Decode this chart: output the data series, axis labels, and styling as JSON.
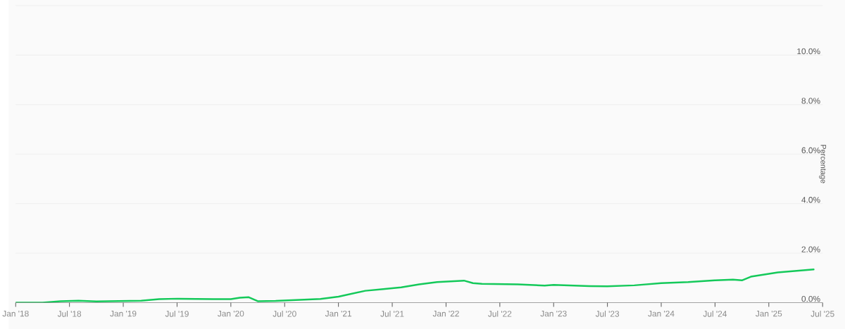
{
  "chart_data": {
    "type": "line",
    "ylabel": "Percentage",
    "grid": "y",
    "x": [
      "2018-01",
      "2018-04",
      "2018-06",
      "2018-08",
      "2018-10",
      "2019-03",
      "2019-05",
      "2019-07",
      "2019-11",
      "2020-01",
      "2020-02",
      "2020-03",
      "2020-04",
      "2020-06",
      "2020-11",
      "2021-01",
      "2021-04",
      "2021-06",
      "2021-08",
      "2021-10",
      "2021-12",
      "2022-03",
      "2022-04",
      "2022-05",
      "2022-09",
      "2022-12",
      "2023-01",
      "2023-05",
      "2023-07",
      "2023-10",
      "2024-01",
      "2024-04",
      "2024-07",
      "2024-09",
      "2024-10",
      "2024-11",
      "2025-02",
      "2025-06"
    ],
    "series": [
      {
        "color": "#14c95a",
        "values": [
          0,
          0,
          0.06,
          0.08,
          0.05,
          0.08,
          0.14,
          0.16,
          0.14,
          0.14,
          0.2,
          0.22,
          0.06,
          0.07,
          0.15,
          0.24,
          0.48,
          0.55,
          0.62,
          0.74,
          0.83,
          0.89,
          0.79,
          0.76,
          0.74,
          0.69,
          0.72,
          0.67,
          0.66,
          0.7,
          0.79,
          0.83,
          0.9,
          0.93,
          0.9,
          1.05,
          1.22,
          1.34
        ]
      }
    ],
    "xlim": [
      "2018-01",
      "2025-07"
    ],
    "xticks": [
      {
        "value": "2018-01",
        "label": "Jan '18"
      },
      {
        "value": "2018-07",
        "label": "Jul '18"
      },
      {
        "value": "2019-01",
        "label": "Jan '19"
      },
      {
        "value": "2019-07",
        "label": "Jul '19"
      },
      {
        "value": "2020-01",
        "label": "Jan '20"
      },
      {
        "value": "2020-07",
        "label": "Jul '20"
      },
      {
        "value": "2021-01",
        "label": "Jan '21"
      },
      {
        "value": "2021-07",
        "label": "Jul '21"
      },
      {
        "value": "2022-01",
        "label": "Jan '22"
      },
      {
        "value": "2022-07",
        "label": "Jul '22"
      },
      {
        "value": "2023-01",
        "label": "Jan '23"
      },
      {
        "value": "2023-07",
        "label": "Jul '23"
      },
      {
        "value": "2024-01",
        "label": "Jan '24"
      },
      {
        "value": "2024-07",
        "label": "Jul '24"
      },
      {
        "value": "2025-01",
        "label": "Jan '25"
      },
      {
        "value": "2025-07",
        "label": "Jul '25"
      }
    ],
    "ylim": [
      0,
      12
    ],
    "yticks": [
      {
        "value": 0,
        "label": "0.0%"
      },
      {
        "value": 2,
        "label": "2.0%"
      },
      {
        "value": 4,
        "label": "4.0%"
      },
      {
        "value": 6,
        "label": "6.0%"
      },
      {
        "value": 8,
        "label": "8.0%"
      },
      {
        "value": 10,
        "label": "10.0%"
      },
      {
        "value": 12,
        "label": null
      }
    ]
  }
}
